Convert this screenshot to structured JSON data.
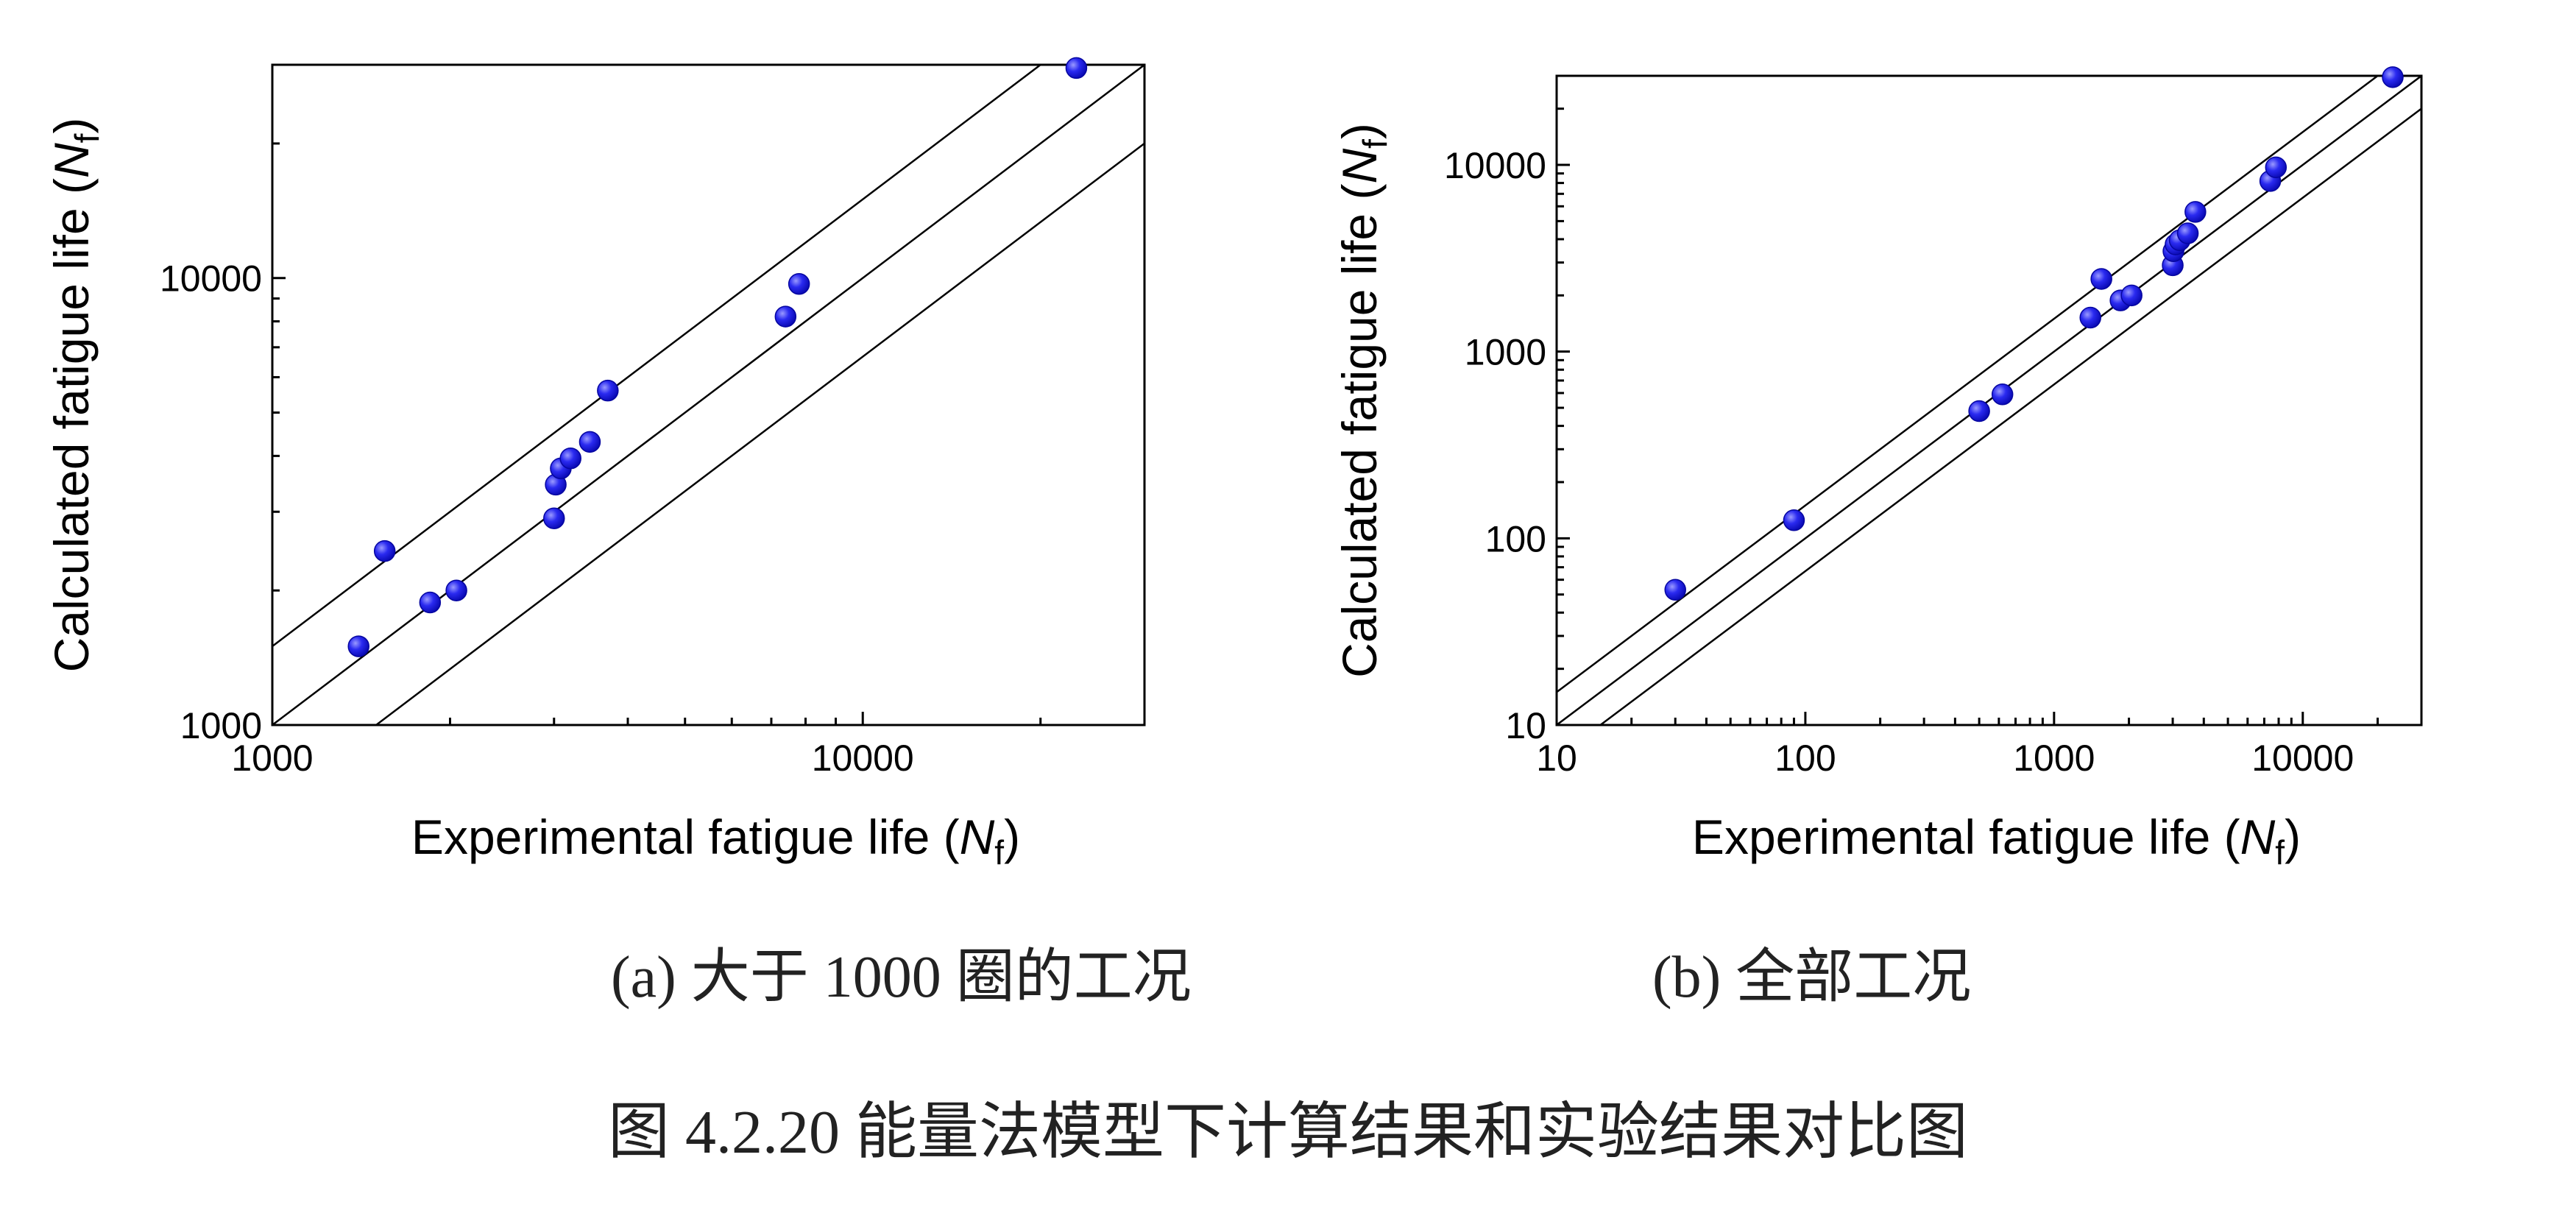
{
  "figure_caption": "图 4.2.20  能量法模型下计算结果和实验结果对比图",
  "colors": {
    "point": "#1010e0",
    "point_highlight": "#8c8cff",
    "frame": "#000000",
    "reference_line": "#000000"
  },
  "chart_data": [
    {
      "id": "a",
      "type": "scatter",
      "caption": "(a)  大于 1000 圈的工况",
      "xscale": "log",
      "yscale": "log",
      "xlim": [
        1000,
        30000
      ],
      "ylim": [
        1000,
        30000
      ],
      "xticks": [
        1000,
        10000
      ],
      "yticks": [
        1000,
        10000
      ],
      "xtick_labels": [
        "1000",
        "10000"
      ],
      "ytick_labels": [
        "1000",
        "10000"
      ],
      "xlabel": "Experimental fatigue life (",
      "ylabel": "Calculated fatigue life (",
      "label_var": "N",
      "label_sub": "f",
      "label_close": ")",
      "reference_lines": [
        {
          "name": "factor-2-upper",
          "factor": 1.5
        },
        {
          "name": "equality-line",
          "factor": 1.0
        },
        {
          "name": "factor-2-lower",
          "factor": 0.667
        }
      ],
      "points": [
        {
          "x": 1400,
          "y": 1500
        },
        {
          "x": 1550,
          "y": 2450
        },
        {
          "x": 1850,
          "y": 1880
        },
        {
          "x": 2050,
          "y": 2000
        },
        {
          "x": 3000,
          "y": 2900
        },
        {
          "x": 3020,
          "y": 3450
        },
        {
          "x": 3080,
          "y": 3750
        },
        {
          "x": 3200,
          "y": 3950
        },
        {
          "x": 3450,
          "y": 4300
        },
        {
          "x": 3700,
          "y": 5600
        },
        {
          "x": 7400,
          "y": 8200
        },
        {
          "x": 7800,
          "y": 9700
        },
        {
          "x": 23000,
          "y": 29500
        }
      ]
    },
    {
      "id": "b",
      "type": "scatter",
      "caption": "(b)  全部工况",
      "xscale": "log",
      "yscale": "log",
      "xlim": [
        10,
        30000
      ],
      "ylim": [
        10,
        30000
      ],
      "xticks": [
        10,
        100,
        1000,
        10000
      ],
      "yticks": [
        10,
        100,
        1000,
        10000
      ],
      "xtick_labels": [
        "10",
        "100",
        "1000",
        "10000"
      ],
      "ytick_labels": [
        "10",
        "100",
        "1000",
        "10000"
      ],
      "xlabel": "Experimental fatigue life (",
      "ylabel": "Calculated fatigue life (",
      "label_var": "N",
      "label_sub": "f",
      "label_close": ")",
      "reference_lines": [
        {
          "name": "factor-2-upper",
          "factor": 1.5
        },
        {
          "name": "equality-line",
          "factor": 1.0
        },
        {
          "name": "factor-2-lower",
          "factor": 0.667
        }
      ],
      "points": [
        {
          "x": 30,
          "y": 53
        },
        {
          "x": 90,
          "y": 125
        },
        {
          "x": 500,
          "y": 480
        },
        {
          "x": 620,
          "y": 590
        },
        {
          "x": 1400,
          "y": 1520
        },
        {
          "x": 1550,
          "y": 2450
        },
        {
          "x": 1850,
          "y": 1880
        },
        {
          "x": 2050,
          "y": 2000
        },
        {
          "x": 3000,
          "y": 2900
        },
        {
          "x": 3020,
          "y": 3450
        },
        {
          "x": 3080,
          "y": 3750
        },
        {
          "x": 3200,
          "y": 3950
        },
        {
          "x": 3450,
          "y": 4300
        },
        {
          "x": 3700,
          "y": 5600
        },
        {
          "x": 7400,
          "y": 8200
        },
        {
          "x": 7800,
          "y": 9700
        },
        {
          "x": 23000,
          "y": 29500
        }
      ]
    }
  ]
}
